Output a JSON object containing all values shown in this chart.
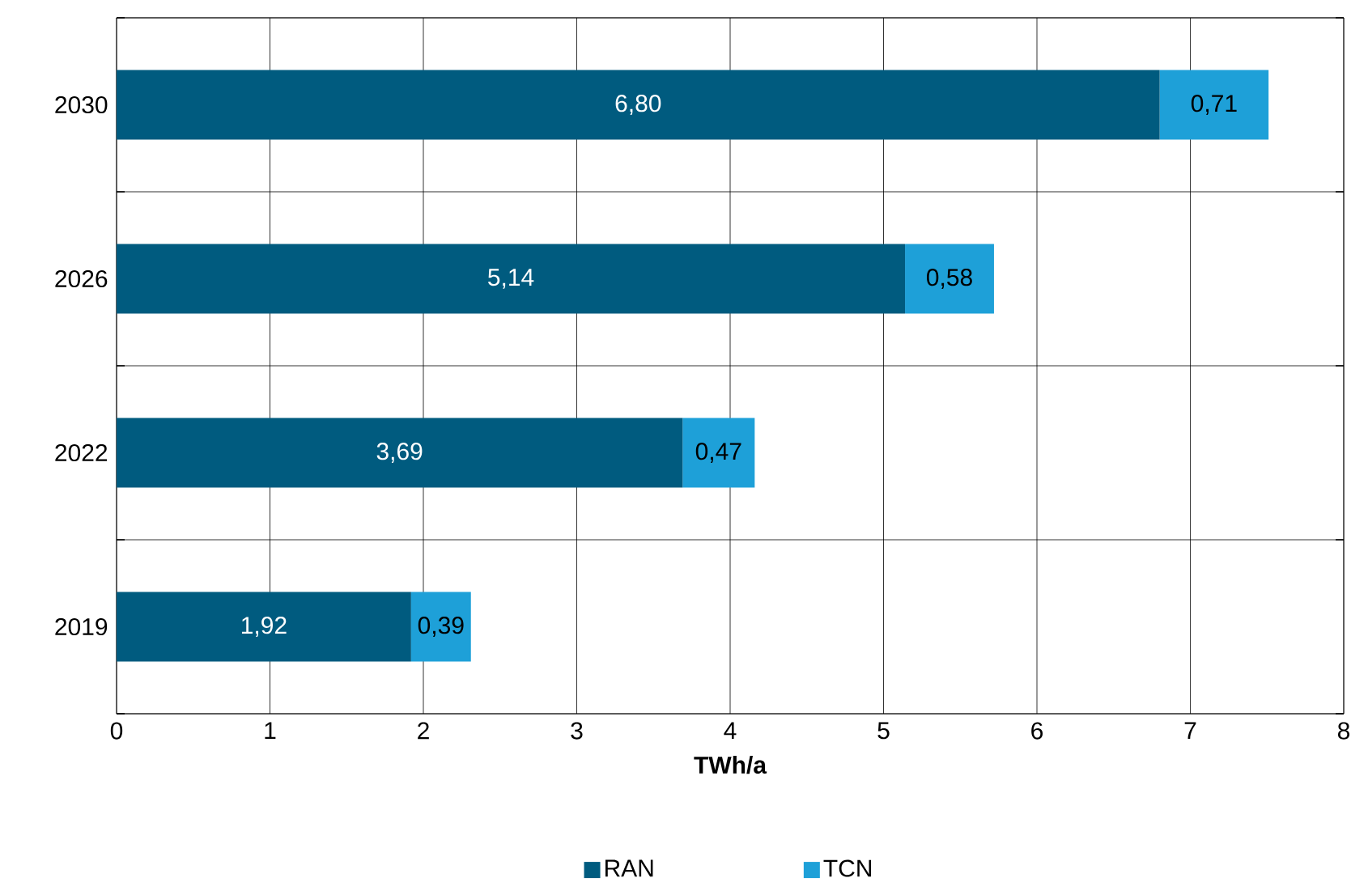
{
  "chart_data": {
    "type": "bar",
    "orientation": "horizontal",
    "stacked": true,
    "categories": [
      "2030",
      "2026",
      "2022",
      "2019"
    ],
    "xlabel": "TWh/a",
    "series": [
      {
        "name": "RAN",
        "color": "#005b7f",
        "values": [
          6.8,
          5.14,
          3.69,
          1.92
        ],
        "value_labels": [
          "6,80",
          "5,14",
          "3,69",
          "1,92"
        ]
      },
      {
        "name": "TCN",
        "color": "#1ea0d8",
        "values": [
          0.71,
          0.58,
          0.47,
          0.39
        ],
        "value_labels": [
          "0,71",
          "0,58",
          "0,47",
          "0,39"
        ]
      }
    ],
    "xlim": [
      0,
      8
    ],
    "xticks": [
      0,
      1,
      2,
      3,
      4,
      5,
      6,
      7,
      8
    ],
    "grid": true,
    "legend": "bottom"
  }
}
